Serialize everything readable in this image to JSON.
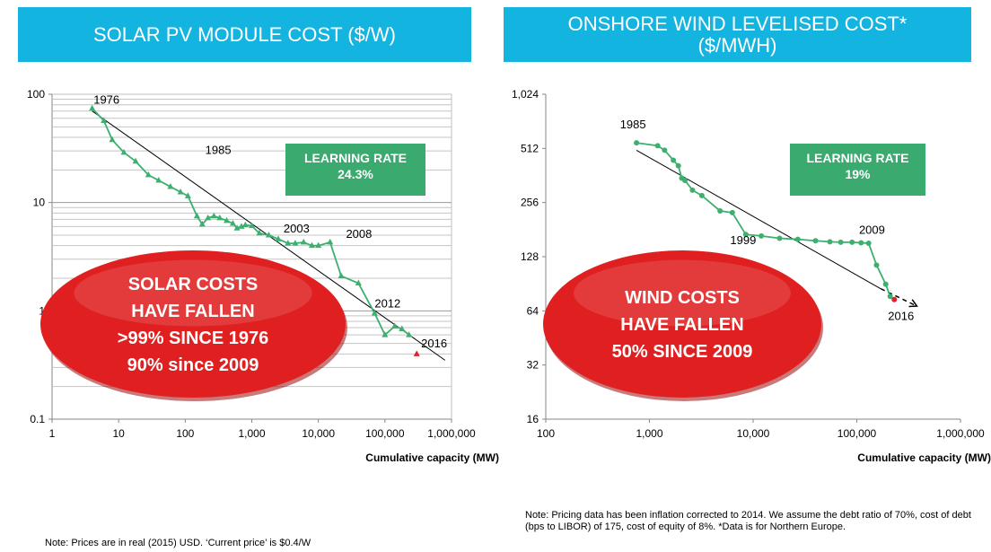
{
  "panels": {
    "left": {
      "title": "SOLAR PV MODULE COST ($/W)",
      "note": "Note: Prices are in real (2015) USD. ‘Current price’ is $0.4/W"
    },
    "right": {
      "title_line1": "ONSHORE WIND LEVELISED COST*",
      "title_line2": "($/MWH)",
      "note": "Note: Pricing data has been inflation corrected to 2014. We assume the debt ratio of 70%, cost of debt (bps to LIBOR) of 175, cost of equity of 8%. *Data is for Northern Europe."
    }
  },
  "colors": {
    "title_bg": "#14b4e0",
    "series_green": "#3daf6f",
    "learning_box": "#3aaa6e",
    "callout_red": "#e02020",
    "current_price_marker": "#e0202a"
  },
  "chart_data": [
    {
      "type": "line",
      "title": "SOLAR PV MODULE COST ($/W)",
      "xlabel": "Cumulative capacity (MW)",
      "ylabel": "",
      "xscale": "log",
      "yscale": "log",
      "xlim": [
        1,
        1000000
      ],
      "ylim": [
        0.1,
        100
      ],
      "x_ticks": [
        "1",
        "10",
        "100",
        "1,000",
        "10,000",
        "100,000",
        "1,000,000"
      ],
      "y_ticks": [
        "0.1",
        "1",
        "10",
        "100"
      ],
      "grid": "horizontal minor",
      "series": [
        {
          "marker": "triangle",
          "x": [
            4,
            6,
            8,
            12,
            18,
            28,
            40,
            60,
            85,
            110,
            150,
            180,
            220,
            270,
            330,
            420,
            520,
            600,
            700,
            800,
            1000,
            1300,
            1800,
            2500,
            3500,
            4500,
            6000,
            8000,
            10000,
            15000,
            22000,
            40000,
            70000,
            100000,
            140000,
            180000,
            230000
          ],
          "y": [
            74,
            57,
            38,
            29,
            24,
            18,
            16,
            14,
            12.5,
            11.5,
            7.5,
            6.3,
            7.2,
            7.5,
            7.2,
            6.8,
            6.4,
            5.8,
            6.0,
            6.2,
            6.1,
            5.2,
            5.0,
            4.6,
            4.2,
            4.2,
            4.3,
            4.0,
            4.0,
            4.3,
            2.1,
            1.8,
            0.95,
            0.6,
            0.72,
            0.68,
            0.6
          ]
        }
      ],
      "current_price": {
        "x": 300000,
        "y": 0.4
      },
      "trendline": {
        "x": [
          4,
          800000
        ],
        "y": [
          70,
          0.35
        ]
      },
      "annotations": [
        {
          "text": "1976",
          "x": 4.2,
          "y": 82
        },
        {
          "text": "1985",
          "x": 200,
          "y": 28
        },
        {
          "text": "2003",
          "x": 3000,
          "y": 5.3
        },
        {
          "text": "2008",
          "x": 26000,
          "y": 4.7
        },
        {
          "text": "2012",
          "x": 70000,
          "y": 1.08
        },
        {
          "text": "2016",
          "x": 350000,
          "y": 0.46
        }
      ],
      "learning_rate": {
        "label": "LEARNING RATE",
        "value": "24.3%"
      },
      "callout": [
        "SOLAR COSTS",
        "HAVE FALLEN",
        ">99% SINCE 1976",
        "90% since 2009"
      ]
    },
    {
      "type": "line",
      "title": "ONSHORE WIND LEVELISED COST* ($/MWH)",
      "xlabel": "Cumulative capacity (MW)",
      "ylabel": "",
      "xscale": "log",
      "yscale": "log",
      "xlim": [
        100,
        1000000
      ],
      "ylim": [
        16,
        1024
      ],
      "x_ticks": [
        "100",
        "1,000",
        "10,000",
        "100,000",
        "1,000,000"
      ],
      "y_ticks": [
        "16",
        "32",
        "64",
        "128",
        "256",
        "512",
        "1,024"
      ],
      "grid": "off",
      "series": [
        {
          "marker": "circle",
          "x": [
            750,
            1200,
            1400,
            1700,
            1900,
            2050,
            2200,
            2600,
            3200,
            4800,
            6300,
            8500,
            12000,
            18000,
            27000,
            40000,
            55000,
            70000,
            90000,
            110000,
            130000,
            155000,
            190000,
            210000
          ],
          "y": [
            550,
            530,
            500,
            440,
            410,
            350,
            340,
            300,
            280,
            230,
            225,
            170,
            167,
            162,
            160,
            157,
            155,
            154,
            154,
            153,
            152,
            115,
            90,
            77
          ]
        }
      ],
      "current_price": {
        "x": 230000,
        "y": 74
      },
      "trendline": {
        "x": [
          750,
          170000
        ],
        "y": [
          500,
          85
        ]
      },
      "extrapolation": {
        "x": [
          170000,
          380000
        ],
        "y": [
          85,
          68
        ]
      },
      "annotations": [
        {
          "text": "1985",
          "x": 520,
          "y": 660
        },
        {
          "text": "1999",
          "x": 6000,
          "y": 150
        },
        {
          "text": "2009",
          "x": 105000,
          "y": 172
        },
        {
          "text": "2016",
          "x": 200000,
          "y": 57
        }
      ],
      "learning_rate": {
        "label": "LEARNING RATE",
        "value": "19%"
      },
      "callout": [
        "WIND COSTS",
        "HAVE FALLEN",
        "50% SINCE 2009"
      ]
    }
  ]
}
